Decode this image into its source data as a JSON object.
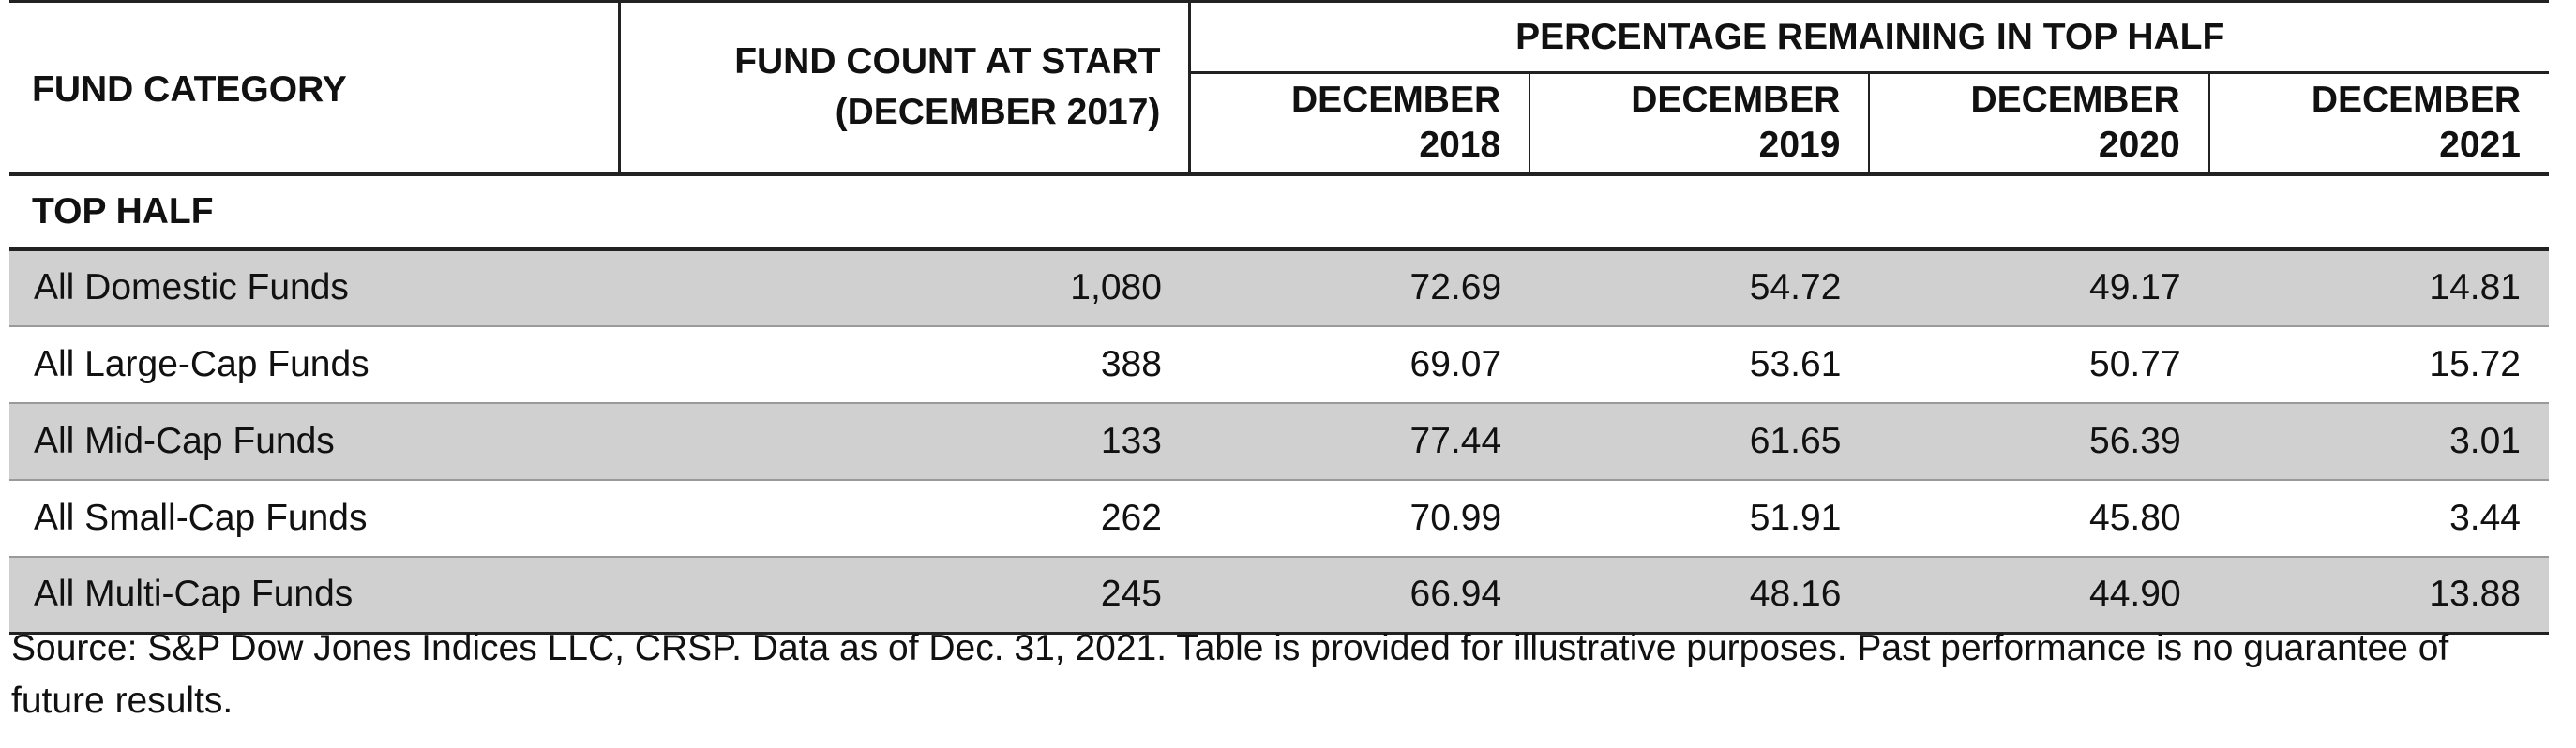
{
  "header": {
    "fund_category": "FUND CATEGORY",
    "fund_count_line1": "FUND COUNT AT START",
    "fund_count_line2": "(DECEMBER 2017)",
    "group_title": "PERCENTAGE REMAINING IN TOP HALF",
    "years": [
      {
        "month": "DECEMBER",
        "year": "2018"
      },
      {
        "month": "DECEMBER",
        "year": "2019"
      },
      {
        "month": "DECEMBER",
        "year": "2020"
      },
      {
        "month": "DECEMBER",
        "year": "2021"
      }
    ]
  },
  "section_label": "TOP HALF",
  "rows": [
    {
      "category": "All Domestic Funds",
      "count": "1,080",
      "values": [
        "72.69",
        "54.72",
        "49.17",
        "14.81"
      ]
    },
    {
      "category": "All Large-Cap Funds",
      "count": "388",
      "values": [
        "69.07",
        "53.61",
        "50.77",
        "15.72"
      ]
    },
    {
      "category": "All Mid-Cap Funds",
      "count": "133",
      "values": [
        "77.44",
        "61.65",
        "56.39",
        "3.01"
      ]
    },
    {
      "category": "All Small-Cap Funds",
      "count": "262",
      "values": [
        "70.99",
        "51.91",
        "45.80",
        "3.44"
      ]
    },
    {
      "category": "All Multi-Cap Funds",
      "count": "245",
      "values": [
        "66.94",
        "48.16",
        "44.90",
        "13.88"
      ]
    }
  ],
  "source_note": "Source: S&P Dow Jones Indices LLC, CRSP.  Data as of Dec. 31, 2021.  Table is provided for illustrative purposes.  Past performance is no guarantee of future results.",
  "colors": {
    "shaded_row": "#d0d0d0",
    "rule": "#222222",
    "divider": "#9a9a9a"
  },
  "chart_data": {
    "type": "table",
    "title": "",
    "columns": [
      "FUND CATEGORY",
      "FUND COUNT AT START (DECEMBER 2017)",
      "DECEMBER 2018",
      "DECEMBER 2019",
      "DECEMBER 2020",
      "DECEMBER 2021"
    ],
    "column_group": "PERCENTAGE REMAINING IN TOP HALF",
    "section": "TOP HALF",
    "rows": [
      [
        "All Domestic Funds",
        1080,
        72.69,
        54.72,
        49.17,
        14.81
      ],
      [
        "All Large-Cap Funds",
        388,
        69.07,
        53.61,
        50.77,
        15.72
      ],
      [
        "All Mid-Cap Funds",
        133,
        77.44,
        61.65,
        56.39,
        3.01
      ],
      [
        "All Small-Cap Funds",
        262,
        70.99,
        51.91,
        45.8,
        3.44
      ],
      [
        "All Multi-Cap Funds",
        245,
        66.94,
        48.16,
        44.9,
        13.88
      ]
    ]
  }
}
